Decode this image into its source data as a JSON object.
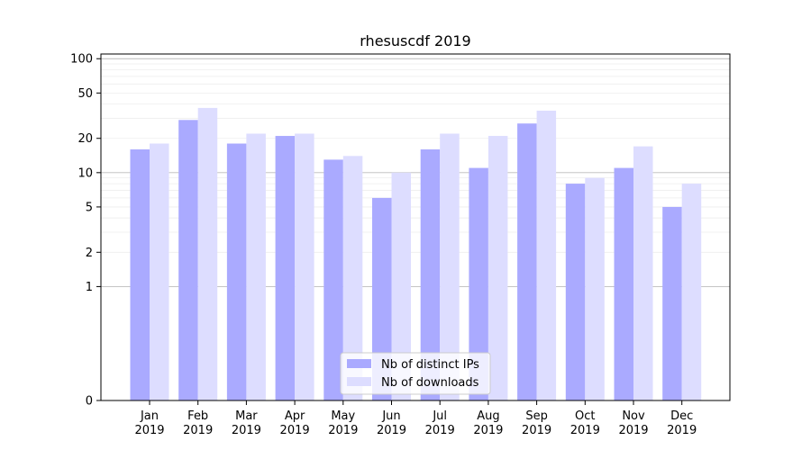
{
  "chart_data": {
    "type": "bar",
    "title": "rhesuscdf 2019",
    "xlabel": "",
    "ylabel": "",
    "yscale": "symlog",
    "ylim": [
      0,
      110
    ],
    "yticks": [
      0,
      1,
      2,
      5,
      10,
      20,
      50,
      100
    ],
    "ytick_labels": [
      "0",
      "1",
      "2",
      "5",
      "10",
      "20",
      "50",
      "100"
    ],
    "categories": [
      [
        "Jan",
        "2019"
      ],
      [
        "Feb",
        "2019"
      ],
      [
        "Mar",
        "2019"
      ],
      [
        "Apr",
        "2019"
      ],
      [
        "May",
        "2019"
      ],
      [
        "Jun",
        "2019"
      ],
      [
        "Jul",
        "2019"
      ],
      [
        "Aug",
        "2019"
      ],
      [
        "Sep",
        "2019"
      ],
      [
        "Oct",
        "2019"
      ],
      [
        "Nov",
        "2019"
      ],
      [
        "Dec",
        "2019"
      ]
    ],
    "series": [
      {
        "name": "Nb of distinct IPs",
        "color": "#aaaaff",
        "values": [
          16,
          29,
          18,
          21,
          13,
          6,
          16,
          11,
          27,
          8,
          11,
          5
        ]
      },
      {
        "name": "Nb of downloads",
        "color": "#ddddff",
        "values": [
          18,
          37,
          22,
          22,
          14,
          10,
          22,
          21,
          35,
          9,
          17,
          8
        ]
      }
    ],
    "grid": true,
    "legend": "bottom-center"
  }
}
